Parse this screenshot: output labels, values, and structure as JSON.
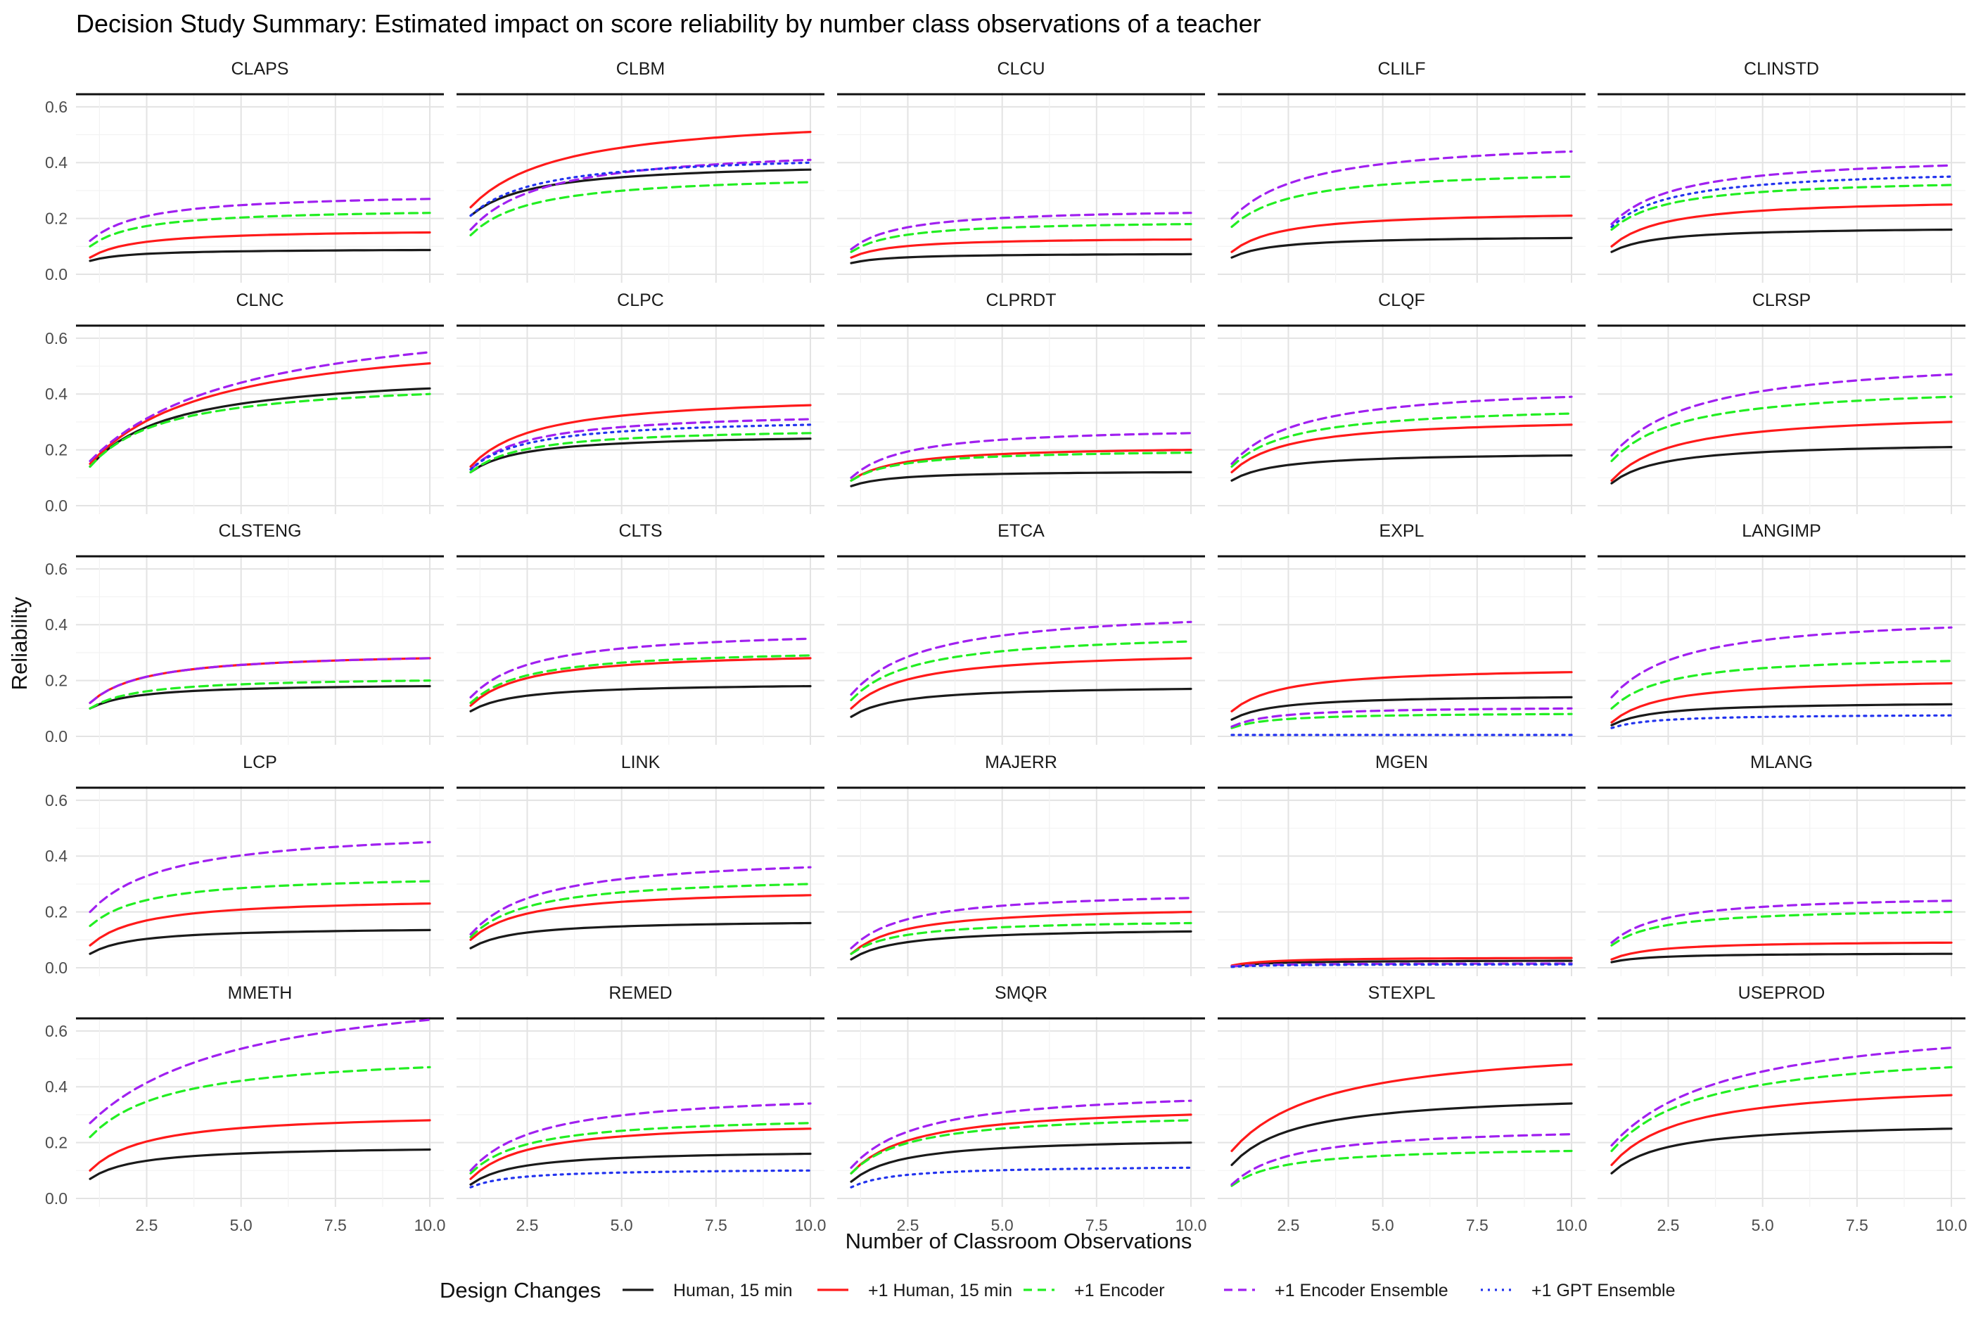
{
  "title": "Decision Study Summary: Estimated impact on score reliability by number class observations of a teacher",
  "xlabel": "Number of Classroom Observations",
  "ylabel": "Reliability",
  "x_ticks": [
    "2.5",
    "5.0",
    "7.5",
    "10.0"
  ],
  "y_ticks": [
    "0.0",
    "0.2",
    "0.4",
    "0.6"
  ],
  "legend": {
    "title": "Design Changes",
    "items": [
      {
        "key": "human",
        "label": "Human, 15 min"
      },
      {
        "key": "plus_human",
        "label": "+1 Human, 15 min"
      },
      {
        "key": "encoder",
        "label": "+1 Encoder"
      },
      {
        "key": "encoder_ensemble",
        "label": "+1 Encoder Ensemble"
      },
      {
        "key": "gpt_ensemble",
        "label": "+1 GPT Ensemble"
      }
    ]
  },
  "colors": {
    "human": "#1a1a1a",
    "plus_human": "#ff1a1a",
    "encoder": "#22ee22",
    "encoder_ensemble": "#a020f0",
    "gpt_ensemble": "#2233ee"
  },
  "chart_data": {
    "type": "line",
    "facets_layout": "5x5 grid",
    "x": [
      1,
      2,
      3,
      4,
      5,
      6,
      7,
      8,
      9,
      10
    ],
    "xlim": [
      1,
      10
    ],
    "ylim": [
      0,
      0.65
    ],
    "grid": true,
    "legend_position": "bottom",
    "line_styles": {
      "human": "solid",
      "plus_human": "solid",
      "encoder": "dashed",
      "encoder_ensemble": "dashed",
      "gpt_ensemble": "dotted"
    },
    "panels": [
      {
        "name": "CLAPS",
        "series": {
          "human": [
            0.048,
            0.087
          ],
          "plus_human": [
            0.06,
            0.15
          ],
          "encoder": [
            0.1,
            0.22
          ],
          "encoder_ensemble": [
            0.12,
            0.27
          ]
        }
      },
      {
        "name": "CLBM",
        "series": {
          "human": [
            0.21,
            0.375
          ],
          "plus_human": [
            0.24,
            0.51
          ],
          "encoder": [
            0.14,
            0.33
          ],
          "encoder_ensemble": [
            0.16,
            0.41
          ],
          "gpt_ensemble": [
            0.21,
            0.4
          ]
        }
      },
      {
        "name": "CLCU",
        "series": {
          "human": [
            0.04,
            0.072
          ],
          "plus_human": [
            0.06,
            0.125
          ],
          "encoder": [
            0.08,
            0.18
          ],
          "encoder_ensemble": [
            0.09,
            0.22
          ]
        }
      },
      {
        "name": "CLILF",
        "series": {
          "human": [
            0.06,
            0.13
          ],
          "plus_human": [
            0.08,
            0.21
          ],
          "encoder": [
            0.17,
            0.35
          ],
          "encoder_ensemble": [
            0.2,
            0.44
          ]
        }
      },
      {
        "name": "CLINSTD",
        "series": {
          "human": [
            0.08,
            0.16
          ],
          "plus_human": [
            0.1,
            0.25
          ],
          "encoder": [
            0.16,
            0.32
          ],
          "encoder_ensemble": [
            0.18,
            0.39
          ],
          "gpt_ensemble": [
            0.17,
            0.35
          ]
        }
      },
      {
        "name": "CLNC",
        "series": {
          "human": [
            0.14,
            0.42
          ],
          "plus_human": [
            0.15,
            0.51
          ],
          "encoder": [
            0.14,
            0.4
          ],
          "encoder_ensemble": [
            0.16,
            0.55
          ]
        }
      },
      {
        "name": "CLPC",
        "series": {
          "human": [
            0.12,
            0.24
          ],
          "plus_human": [
            0.14,
            0.36
          ],
          "encoder": [
            0.12,
            0.26
          ],
          "encoder_ensemble": [
            0.13,
            0.31
          ],
          "gpt_ensemble": [
            0.13,
            0.29
          ]
        }
      },
      {
        "name": "CLPRDT",
        "series": {
          "human": [
            0.07,
            0.12
          ],
          "plus_human": [
            0.09,
            0.2
          ],
          "encoder": [
            0.09,
            0.19
          ],
          "encoder_ensemble": [
            0.1,
            0.26
          ]
        }
      },
      {
        "name": "CLQF",
        "series": {
          "human": [
            0.09,
            0.18
          ],
          "plus_human": [
            0.12,
            0.29
          ],
          "encoder": [
            0.14,
            0.33
          ],
          "encoder_ensemble": [
            0.15,
            0.39
          ]
        }
      },
      {
        "name": "CLRSP",
        "series": {
          "human": [
            0.08,
            0.21
          ],
          "plus_human": [
            0.09,
            0.3
          ],
          "encoder": [
            0.16,
            0.39
          ],
          "encoder_ensemble": [
            0.18,
            0.47
          ]
        }
      },
      {
        "name": "CLSTENG",
        "series": {
          "human": [
            0.1,
            0.18
          ],
          "plus_human": [
            0.12,
            0.28
          ],
          "encoder": [
            0.1,
            0.2
          ],
          "encoder_ensemble": [
            0.12,
            0.28
          ]
        }
      },
      {
        "name": "CLTS",
        "series": {
          "human": [
            0.09,
            0.18
          ],
          "plus_human": [
            0.11,
            0.28
          ],
          "encoder": [
            0.12,
            0.29
          ],
          "encoder_ensemble": [
            0.14,
            0.35
          ]
        }
      },
      {
        "name": "ETCA",
        "series": {
          "human": [
            0.07,
            0.17
          ],
          "plus_human": [
            0.1,
            0.28
          ],
          "encoder": [
            0.13,
            0.34
          ],
          "encoder_ensemble": [
            0.15,
            0.41
          ]
        }
      },
      {
        "name": "EXPL",
        "series": {
          "human": [
            0.06,
            0.14
          ],
          "plus_human": [
            0.09,
            0.23
          ],
          "encoder": [
            0.03,
            0.08
          ],
          "encoder_ensemble": [
            0.035,
            0.1
          ],
          "gpt_ensemble": [
            0.005,
            0.005
          ]
        }
      },
      {
        "name": "LANGIMP",
        "series": {
          "human": [
            0.04,
            0.115
          ],
          "plus_human": [
            0.05,
            0.19
          ],
          "encoder": [
            0.1,
            0.27
          ],
          "encoder_ensemble": [
            0.14,
            0.39
          ],
          "gpt_ensemble": [
            0.03,
            0.075
          ]
        }
      },
      {
        "name": "LCP",
        "series": {
          "human": [
            0.05,
            0.135
          ],
          "plus_human": [
            0.08,
            0.23
          ],
          "encoder": [
            0.15,
            0.31
          ],
          "encoder_ensemble": [
            0.2,
            0.45
          ]
        }
      },
      {
        "name": "LINK",
        "series": {
          "human": [
            0.07,
            0.16
          ],
          "plus_human": [
            0.1,
            0.26
          ],
          "encoder": [
            0.11,
            0.3
          ],
          "encoder_ensemble": [
            0.12,
            0.36
          ]
        }
      },
      {
        "name": "MAJERR",
        "series": {
          "human": [
            0.03,
            0.13
          ],
          "plus_human": [
            0.05,
            0.2
          ],
          "encoder": [
            0.05,
            0.16
          ],
          "encoder_ensemble": [
            0.07,
            0.25
          ]
        }
      },
      {
        "name": "MGEN",
        "series": {
          "human": [
            0.005,
            0.025
          ],
          "plus_human": [
            0.008,
            0.035
          ],
          "encoder": [
            0.005,
            0.015
          ],
          "encoder_ensemble": [
            0.005,
            0.015
          ],
          "gpt_ensemble": [
            0.003,
            0.012
          ]
        }
      },
      {
        "name": "MLANG",
        "series": {
          "human": [
            0.02,
            0.05
          ],
          "plus_human": [
            0.03,
            0.09
          ],
          "encoder": [
            0.08,
            0.2
          ],
          "encoder_ensemble": [
            0.09,
            0.24
          ]
        }
      },
      {
        "name": "MMETH",
        "series": {
          "human": [
            0.07,
            0.175
          ],
          "plus_human": [
            0.1,
            0.28
          ],
          "encoder": [
            0.22,
            0.47
          ],
          "encoder_ensemble": [
            0.27,
            0.64
          ]
        }
      },
      {
        "name": "REMED",
        "series": {
          "human": [
            0.05,
            0.16
          ],
          "plus_human": [
            0.07,
            0.25
          ],
          "encoder": [
            0.09,
            0.27
          ],
          "encoder_ensemble": [
            0.1,
            0.34
          ],
          "gpt_ensemble": [
            0.04,
            0.1
          ]
        }
      },
      {
        "name": "SMQR",
        "series": {
          "human": [
            0.06,
            0.2
          ],
          "plus_human": [
            0.09,
            0.3
          ],
          "encoder": [
            0.09,
            0.28
          ],
          "encoder_ensemble": [
            0.11,
            0.35
          ],
          "gpt_ensemble": [
            0.04,
            0.11
          ]
        }
      },
      {
        "name": "STEXPL",
        "series": {
          "human": [
            0.12,
            0.34
          ],
          "plus_human": [
            0.17,
            0.48
          ],
          "encoder": [
            0.045,
            0.17
          ],
          "encoder_ensemble": [
            0.05,
            0.23
          ]
        }
      },
      {
        "name": "USEPROD",
        "series": {
          "human": [
            0.09,
            0.25
          ],
          "plus_human": [
            0.12,
            0.37
          ],
          "encoder": [
            0.17,
            0.47
          ],
          "encoder_ensemble": [
            0.19,
            0.54
          ]
        }
      }
    ],
    "series_value_note": "each series array gives [reliability at 1 observation, reliability at 10 observations]; intermediate points follow a Spearman-Brown-shaped curve"
  }
}
